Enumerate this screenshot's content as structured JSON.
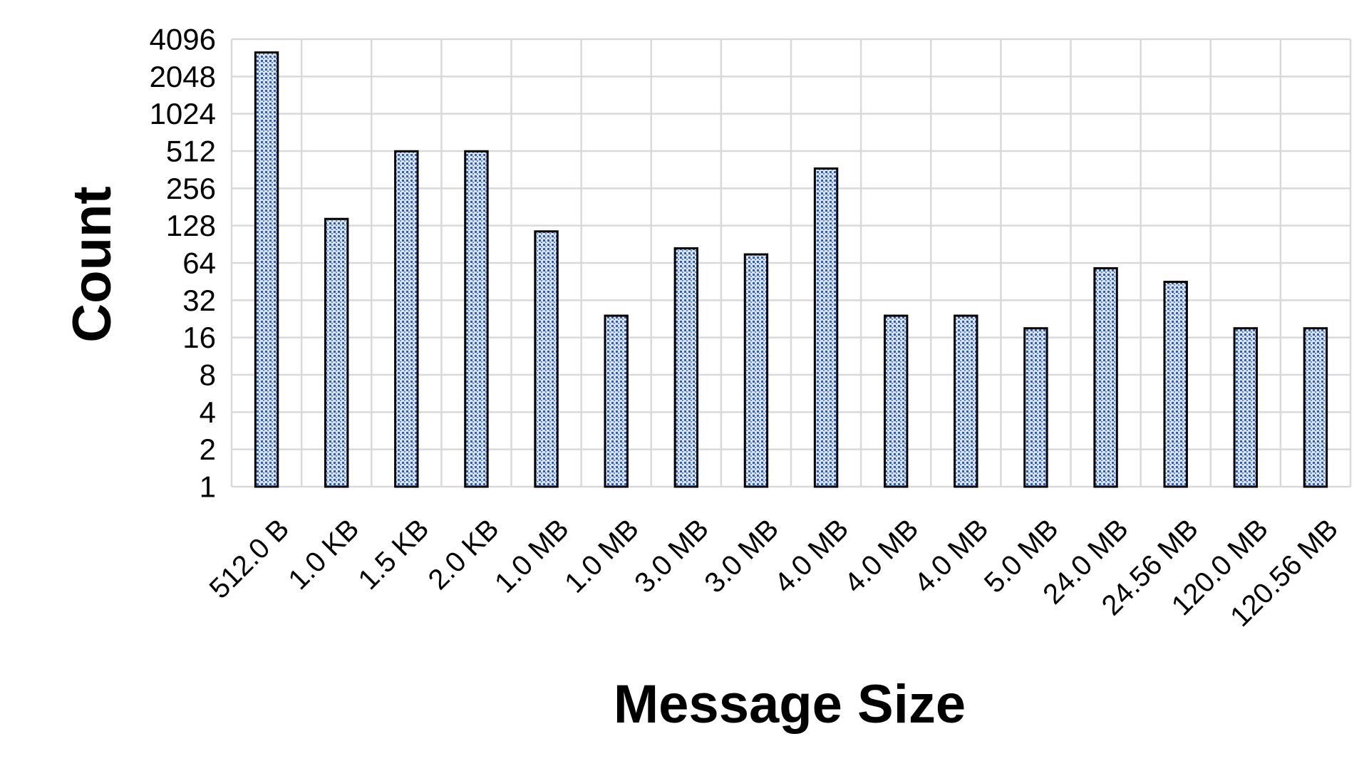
{
  "chart_data": {
    "type": "bar",
    "scale": "log2",
    "title": "",
    "xlabel": "Message Size",
    "ylabel": "Count",
    "ylim": [
      1,
      4096
    ],
    "yticks": [
      "1",
      "2",
      "4",
      "8",
      "16",
      "32",
      "64",
      "128",
      "256",
      "512",
      "1024",
      "2048",
      "4096"
    ],
    "categories": [
      "512.0 B",
      "1.0 KB",
      "1.5 KB",
      "2.0 KB",
      "1.0 MB",
      "1.0 MB",
      "3.0 MB",
      "3.0 MB",
      "4.0 MB",
      "4.0 MB",
      "4.0 MB",
      "5.0 MB",
      "24.0 MB",
      "24.56 MB",
      "120.0 MB",
      "120.56 MB"
    ],
    "values": [
      3200,
      145,
      510,
      510,
      115,
      24,
      84,
      75,
      370,
      24,
      24,
      19,
      58,
      45,
      19,
      19
    ],
    "grid": true,
    "colors": {
      "bar_fill": "#dce6f4",
      "bar_dots": "#3b5ba5",
      "grid": "#d9d9d9"
    }
  }
}
